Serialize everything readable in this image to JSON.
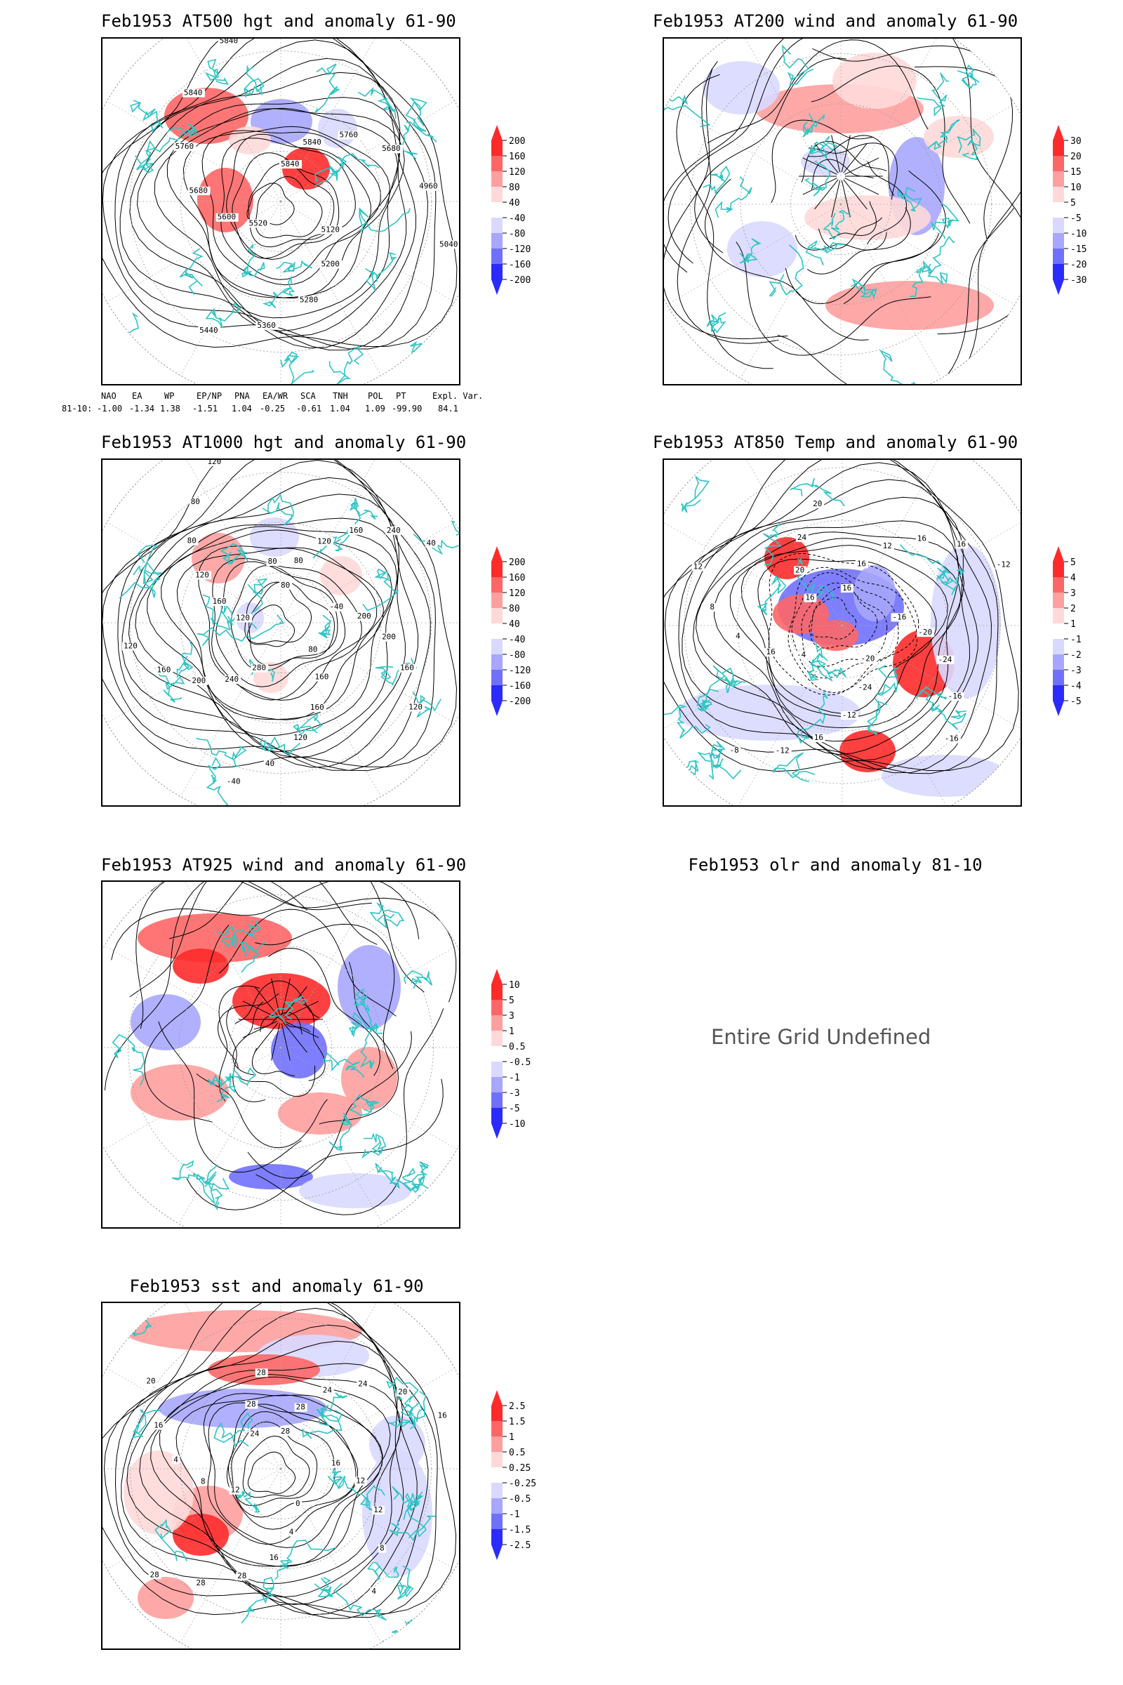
{
  "colors": {
    "coast": "#2ec4c4",
    "contour": "#000000",
    "warm": [
      "#ffd9d9",
      "#ff9f9f",
      "#ff6666",
      "#ff2b2b"
    ],
    "cool": [
      "#d9d9ff",
      "#a7a7ff",
      "#7070ff",
      "#2b2bff"
    ]
  },
  "charts": [
    {
      "id": "z500",
      "title": "Feb1953 AT500 hgt and anomaly 61-90",
      "colorbar": [
        "200",
        "160",
        "120",
        "80",
        "40",
        "-40",
        "-80",
        "-120",
        "-160",
        "-200"
      ],
      "contour_labels": [
        "5840",
        "5840",
        "5760",
        "5680",
        "4960",
        "5040",
        "5120",
        "5200",
        "5280",
        "5360",
        "5440",
        "5520",
        "5600",
        "5680",
        "5760",
        "5840",
        "5840"
      ]
    },
    {
      "id": "u200",
      "title": "Feb1953 AT200 wind and anomaly 61-90",
      "colorbar": [
        "30",
        "20",
        "15",
        "10",
        "5",
        "-5",
        "-10",
        "-15",
        "-20",
        "-30"
      ],
      "contour_labels": []
    },
    {
      "id": "z1000",
      "title": "Feb1953 AT1000 hgt and anomaly 61-90",
      "colorbar": [
        "200",
        "160",
        "120",
        "80",
        "40",
        "-40",
        "-80",
        "-120",
        "-160",
        "-200"
      ],
      "contour_labels": [
        "80",
        "80",
        "120",
        "160",
        "240",
        "40",
        "-40",
        "200",
        "200",
        "160",
        "120",
        "80",
        "160",
        "160",
        "120",
        "40",
        "-40",
        "280",
        "240",
        "200",
        "160",
        "120",
        "120",
        "160",
        "120",
        "80",
        "80",
        "120",
        "80"
      ]
    },
    {
      "id": "t850",
      "title": "Feb1953 AT850 Temp and anomaly 61-90",
      "colorbar": [
        "5",
        "4",
        "3",
        "2",
        "1",
        "-1",
        "-2",
        "-3",
        "-4",
        "-5"
      ],
      "contour_labels": [
        "16",
        "16",
        "12",
        "16",
        "16",
        "-12",
        "-16",
        "-20",
        "-24",
        "-16",
        "-16",
        "-20",
        "-24",
        "-12",
        "16",
        "-12",
        "-8",
        "-4",
        "16",
        "4",
        "8",
        "12",
        "16",
        "20",
        "24",
        "20"
      ]
    },
    {
      "id": "u925",
      "title": "Feb1953 AT925 wind and anomaly 61-90",
      "colorbar": [
        "10",
        "5",
        "3",
        "1",
        "0.5",
        "-0.5",
        "-1",
        "-3",
        "-5",
        "-10"
      ],
      "contour_labels": []
    },
    {
      "id": "olr",
      "title": "Feb1953 olr and anomaly 81-10",
      "message": "Entire Grid Undefined"
    },
    {
      "id": "sst",
      "title": "Feb1953 sst and anomaly 61-90",
      "colorbar": [
        "2.5",
        "1.5",
        "1",
        "0.5",
        "0.25",
        "-0.25",
        "-0.5",
        "-1",
        "-1.5",
        "-2.5"
      ],
      "contour_labels": [
        "28",
        "28",
        "24",
        "24",
        "20",
        "16",
        "16",
        "12",
        "12",
        "8",
        "4",
        "0",
        "4",
        "16",
        "28",
        "28",
        "28",
        "12",
        "8",
        "4",
        "16",
        "20",
        "24",
        "28",
        "28"
      ]
    }
  ],
  "indices": {
    "headers": [
      "NAO",
      "EA",
      "WP",
      "EP/NP",
      "PNA",
      "EA/WR",
      "SCA",
      "TNH",
      "POL",
      "PT",
      "Expl. Var."
    ],
    "row_label": "81-10:",
    "values": [
      "-1.00",
      "-1.34",
      "1.38",
      "-1.51",
      "1.04",
      "-0.25",
      "-0.61",
      "1.04",
      "1.09",
      "-99.90",
      "84.1"
    ]
  }
}
